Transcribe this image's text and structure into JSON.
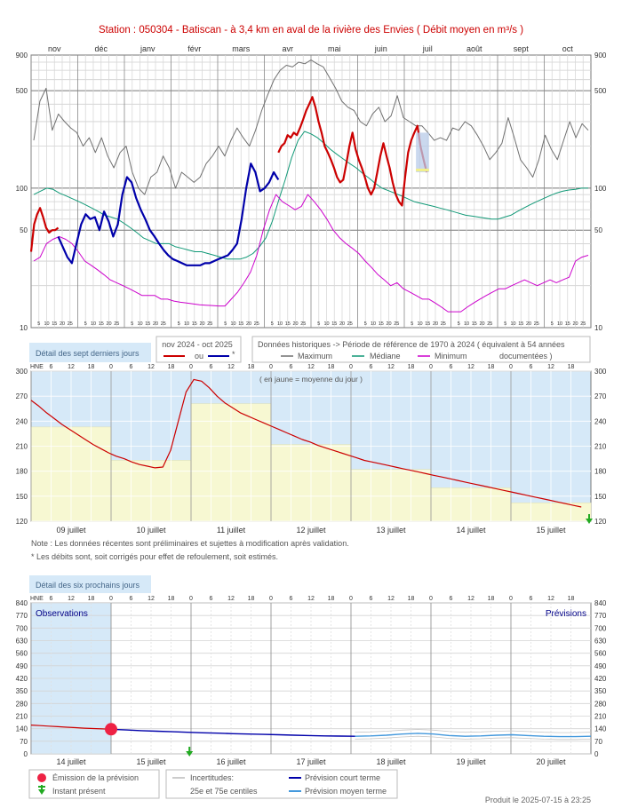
{
  "title": "Station : 050304     -   Batiscan - à 3,4 km en aval de la rivière des Envies   ( Débit moyen en m³/s )",
  "colors": {
    "red": "#cc0000",
    "blue": "#0000aa",
    "gray": "#707070",
    "median": "#119977",
    "minimum": "#cc00cc",
    "lightblue": "#d6e9f8",
    "lightyellow": "#f7f8d2",
    "dot": "#ee2244",
    "green": "#22aa22"
  },
  "chart_data": [
    {
      "type": "line",
      "name": "annual",
      "months": [
        "nov",
        "déc",
        "janv",
        "févr",
        "mars",
        "avr",
        "mai",
        "juin",
        "juil",
        "août",
        "sept",
        "oct"
      ],
      "yscale": "log",
      "ylim": [
        10,
        900
      ],
      "yticks_left": [
        "900",
        "500",
        "100",
        "50",
        "10"
      ],
      "yticks_right": [
        "900",
        "500",
        "100",
        "50",
        "10"
      ],
      "day_ticks": [
        "5",
        "10",
        "15",
        "20",
        "25"
      ],
      "series": [
        {
          "name": "Maximum",
          "values": [
            220,
            420,
            520,
            260,
            340,
            300,
            270,
            250,
            200,
            230,
            180,
            230,
            170,
            140,
            180,
            200,
            130,
            100,
            90,
            120,
            130,
            170,
            140,
            100,
            130,
            120,
            110,
            120,
            150,
            170,
            200,
            170,
            220,
            270,
            230,
            200,
            260,
            360,
            470,
            600,
            700,
            760,
            740,
            800,
            780,
            830,
            780,
            740,
            620,
            520,
            420,
            380,
            360,
            300,
            280,
            340,
            380,
            300,
            330,
            460,
            320,
            300,
            280,
            280,
            250,
            220,
            230,
            220,
            270,
            260,
            300,
            280,
            240,
            200,
            160,
            180,
            210,
            320,
            230,
            160,
            140,
            120,
            160,
            240,
            190,
            160,
            220,
            300,
            230,
            290,
            260
          ]
        },
        {
          "name": "Médiane",
          "values": [
            90,
            95,
            100,
            98,
            92,
            88,
            84,
            80,
            76,
            72,
            68,
            64,
            62,
            60,
            56,
            52,
            48,
            44,
            42,
            40,
            40,
            40,
            38,
            37,
            36,
            35,
            35,
            34,
            33,
            32,
            31,
            31,
            31,
            32,
            34,
            38,
            44,
            58,
            82,
            115,
            165,
            220,
            255,
            245,
            230,
            210,
            190,
            175,
            162,
            150,
            140,
            128,
            118,
            108,
            100,
            96,
            92,
            88,
            84,
            80,
            78,
            76,
            74,
            72,
            70,
            68,
            66,
            64,
            63,
            62,
            61,
            60,
            60,
            62,
            64,
            68,
            72,
            76,
            80,
            84,
            88,
            92,
            95,
            97,
            98,
            100,
            100
          ]
        },
        {
          "name": "Minimum",
          "values": [
            30,
            32,
            40,
            43,
            45,
            43,
            40,
            35,
            30,
            28,
            26,
            24,
            22,
            21,
            20,
            19,
            18,
            17,
            17,
            17,
            16,
            16,
            15.5,
            15.2,
            15,
            14.8,
            14.6,
            14.5,
            14.4,
            14.3,
            14.3,
            16,
            18,
            21,
            25,
            33,
            50,
            70,
            90,
            80,
            75,
            70,
            74,
            90,
            80,
            70,
            60,
            50,
            44,
            40,
            37,
            34,
            30,
            27,
            24,
            22,
            20,
            21,
            19,
            18,
            17,
            16,
            16,
            15,
            14,
            13,
            13,
            13,
            14,
            15,
            16,
            17,
            18,
            19,
            19,
            20,
            21,
            22,
            21,
            20,
            21,
            22,
            21,
            22,
            23,
            30,
            32,
            33
          ]
        },
        {
          "name": "nov 2024 - oct 2025",
          "values": [
            35,
            55,
            65,
            72,
            62,
            52,
            48,
            50,
            50,
            52
          ]
        },
        {
          "name": "*",
          "values": [
            45,
            38,
            32,
            29,
            40,
            55,
            65,
            60,
            62,
            50,
            68,
            58,
            45,
            55,
            90,
            120,
            110,
            85,
            70,
            60,
            50,
            45,
            40,
            36,
            33,
            31,
            30,
            29,
            28,
            28,
            28,
            28,
            29,
            29,
            30,
            31,
            32,
            33,
            36,
            40,
            60,
            100,
            150,
            130,
            95,
            100,
            110,
            130,
            115
          ]
        },
        {
          "name": "nov 2024 - oct 2025",
          "values": [
            180,
            200,
            210,
            240,
            230,
            250,
            240,
            270,
            310,
            360,
            400,
            450,
            380,
            300,
            250,
            200,
            180,
            160,
            140,
            120,
            110,
            115,
            150,
            200,
            250,
            190,
            160,
            140,
            120,
            100,
            90,
            100,
            130,
            170,
            210,
            170,
            140,
            110,
            90,
            80,
            75,
            120,
            180,
            220,
            250,
            280,
            200,
            160,
            130
          ]
        }
      ]
    },
    {
      "type": "line",
      "name": "seven-days",
      "ylim": [
        120,
        300
      ],
      "yticks": [
        "120",
        "150",
        "180",
        "210",
        "240",
        "270",
        "300"
      ],
      "hour_ticks": [
        "6",
        "12",
        "18",
        "0"
      ],
      "hne": "HNE",
      "days": [
        "09 juillet",
        "10 juillet",
        "11 juillet",
        "12 juillet",
        "13 juillet",
        "14 juillet",
        "15 juillet"
      ],
      "daily_means": [
        233,
        193,
        261,
        212,
        182,
        160,
        142
      ],
      "values": [
        265,
        258,
        250,
        243,
        236,
        230,
        224,
        218,
        212,
        207,
        202,
        198,
        195,
        191,
        188,
        186,
        184,
        185,
        205,
        240,
        275,
        290,
        288,
        280,
        270,
        262,
        256,
        250,
        246,
        242,
        238,
        234,
        230,
        226,
        222,
        218,
        215,
        211,
        208,
        205,
        202,
        199,
        196,
        193,
        191,
        189,
        187,
        185,
        183,
        181,
        179,
        177,
        175,
        173,
        171,
        169,
        167,
        165,
        163,
        161,
        159,
        157,
        155,
        153,
        151,
        149,
        147,
        145,
        143,
        141,
        139,
        137
      ]
    },
    {
      "type": "line",
      "name": "forecast",
      "ylim": [
        0,
        840
      ],
      "yticks": [
        "0",
        "70",
        "140",
        "210",
        "280",
        "350",
        "420",
        "490",
        "560",
        "630",
        "700",
        "770",
        "840"
      ],
      "hour_ticks": [
        "6",
        "12",
        "18",
        "0"
      ],
      "hne": "HNE",
      "days": [
        "14 juillet",
        "15 juillet",
        "16 juillet",
        "17 juillet",
        "18 juillet",
        "19 juillet",
        "20 juillet"
      ],
      "observations": [
        160,
        157,
        154,
        151,
        148,
        146,
        143,
        141,
        139,
        137
      ],
      "short_term": [
        137,
        133,
        129,
        126,
        123,
        120,
        117,
        115,
        112,
        110,
        108,
        106,
        104,
        102,
        100,
        99,
        98
      ],
      "medium_term": [
        98,
        100,
        104,
        110,
        114,
        110,
        102,
        98,
        100,
        104,
        106,
        102,
        98,
        96,
        96,
        98
      ]
    }
  ],
  "labels": {
    "seven_days": "Détail des sept derniers jours",
    "six_days": "Détail des six prochains jours",
    "current_year": "nov 2024 - oct 2025",
    "ou": "ou",
    "star": "*",
    "historic": "Données historiques -> Période de référence  de 1970 à 2024   ( équivalent à 54 années",
    "documented": "documentées )",
    "maximum": "Maximum",
    "median": "Médiane",
    "minimum": "Minimum",
    "yellow_note": "( en jaune = moyenne du jour )",
    "note1": "Note : Les données récentes sont préliminaires et sujettes à modification après validation.",
    "note2": "* Les débits sont, soit corrigés pour effet de refoulement, soit estimés.",
    "observations": "Observations",
    "previsions": "Prévisions",
    "emission": "Émission de la prévision",
    "instant": "Instant présent",
    "incertitudes": "Incertitudes:",
    "centiles": "25e et 75e centiles",
    "short": "Prévision court terme",
    "medium": "Prévision moyen terme",
    "produced": "Produit le 2025-07-15 à 23:25"
  }
}
